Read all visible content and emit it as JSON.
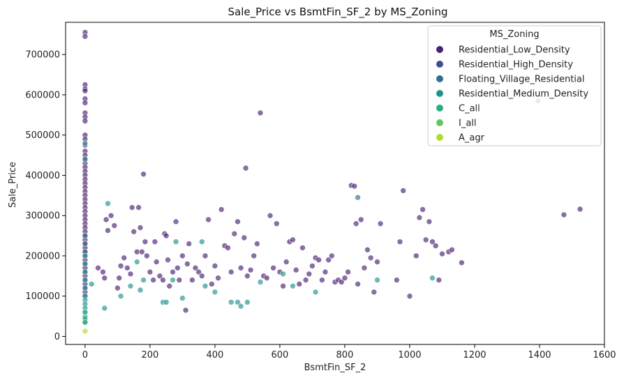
{
  "chart_data": {
    "type": "scatter",
    "title": "Sale_Price vs BsmtFin_SF_2 by MS_Zoning",
    "xlabel": "BsmtFin_SF_2",
    "ylabel": "Sale_Price",
    "xlim": [
      -60,
      1600
    ],
    "ylim": [
      -20000,
      780000
    ],
    "xticks": [
      0,
      200,
      400,
      600,
      800,
      1000,
      1200,
      1400,
      1600
    ],
    "yticks": [
      0,
      100000,
      200000,
      300000,
      400000,
      500000,
      600000,
      700000
    ],
    "grid": false,
    "legend": {
      "title": "MS_Zoning",
      "placement": "top-right"
    },
    "series": [
      {
        "name": "Residential_Low_Density",
        "color": "#482173",
        "points": [
          [
            0,
            755000
          ],
          [
            0,
            745000
          ],
          [
            0,
            625000
          ],
          [
            0,
            615000
          ],
          [
            0,
            610000
          ],
          [
            0,
            590000
          ],
          [
            0,
            580000
          ],
          [
            0,
            555000
          ],
          [
            0,
            545000
          ],
          [
            0,
            535000
          ],
          [
            0,
            500000
          ],
          [
            0,
            490000
          ],
          [
            0,
            475000
          ],
          [
            0,
            460000
          ],
          [
            0,
            450000
          ],
          [
            0,
            440000
          ],
          [
            0,
            430000
          ],
          [
            0,
            420000
          ],
          [
            0,
            410000
          ],
          [
            0,
            400000
          ],
          [
            0,
            390000
          ],
          [
            0,
            380000
          ],
          [
            0,
            370000
          ],
          [
            0,
            360000
          ],
          [
            0,
            350000
          ],
          [
            0,
            340000
          ],
          [
            0,
            330000
          ],
          [
            0,
            320000
          ],
          [
            0,
            310000
          ],
          [
            0,
            300000
          ],
          [
            0,
            290000
          ],
          [
            0,
            280000
          ],
          [
            0,
            270000
          ],
          [
            0,
            260000
          ],
          [
            0,
            250000
          ],
          [
            0,
            240000
          ],
          [
            0,
            230000
          ],
          [
            0,
            220000
          ],
          [
            0,
            210000
          ],
          [
            0,
            200000
          ],
          [
            0,
            190000
          ],
          [
            0,
            180000
          ],
          [
            0,
            170000
          ],
          [
            0,
            160000
          ],
          [
            0,
            150000
          ],
          [
            0,
            140000
          ],
          [
            0,
            130000
          ],
          [
            0,
            120000
          ],
          [
            0,
            110000
          ],
          [
            0,
            100000
          ],
          [
            40,
            170000
          ],
          [
            55,
            160000
          ],
          [
            60,
            145000
          ],
          [
            65,
            290000
          ],
          [
            70,
            263000
          ],
          [
            80,
            300000
          ],
          [
            90,
            275000
          ],
          [
            100,
            120000
          ],
          [
            105,
            145000
          ],
          [
            110,
            175000
          ],
          [
            120,
            195000
          ],
          [
            130,
            170000
          ],
          [
            140,
            155000
          ],
          [
            145,
            320000
          ],
          [
            150,
            260000
          ],
          [
            160,
            210000
          ],
          [
            165,
            320000
          ],
          [
            170,
            270000
          ],
          [
            175,
            210000
          ],
          [
            180,
            403000
          ],
          [
            185,
            235000
          ],
          [
            190,
            200000
          ],
          [
            200,
            160000
          ],
          [
            210,
            140000
          ],
          [
            215,
            235000
          ],
          [
            220,
            185000
          ],
          [
            230,
            150000
          ],
          [
            240,
            140000
          ],
          [
            245,
            255000
          ],
          [
            250,
            250000
          ],
          [
            255,
            190000
          ],
          [
            260,
            125000
          ],
          [
            270,
            160000
          ],
          [
            280,
            285000
          ],
          [
            285,
            170000
          ],
          [
            290,
            140000
          ],
          [
            300,
            200000
          ],
          [
            310,
            65000
          ],
          [
            315,
            180000
          ],
          [
            320,
            230000
          ],
          [
            330,
            140000
          ],
          [
            340,
            170000
          ],
          [
            350,
            160000
          ],
          [
            360,
            150000
          ],
          [
            370,
            200000
          ],
          [
            380,
            290000
          ],
          [
            390,
            130000
          ],
          [
            400,
            175000
          ],
          [
            410,
            145000
          ],
          [
            420,
            315000
          ],
          [
            430,
            225000
          ],
          [
            440,
            220000
          ],
          [
            450,
            160000
          ],
          [
            460,
            255000
          ],
          [
            470,
            285000
          ],
          [
            480,
            170000
          ],
          [
            490,
            245000
          ],
          [
            495,
            418000
          ],
          [
            500,
            150000
          ],
          [
            510,
            165000
          ],
          [
            520,
            200000
          ],
          [
            530,
            230000
          ],
          [
            540,
            555000
          ],
          [
            550,
            150000
          ],
          [
            560,
            145000
          ],
          [
            570,
            300000
          ],
          [
            580,
            170000
          ],
          [
            590,
            280000
          ],
          [
            600,
            160000
          ],
          [
            610,
            125000
          ],
          [
            620,
            185000
          ],
          [
            630,
            235000
          ],
          [
            640,
            240000
          ],
          [
            650,
            165000
          ],
          [
            660,
            130000
          ],
          [
            670,
            220000
          ],
          [
            680,
            140000
          ],
          [
            690,
            155000
          ],
          [
            700,
            175000
          ],
          [
            710,
            195000
          ],
          [
            720,
            190000
          ],
          [
            730,
            140000
          ],
          [
            740,
            160000
          ],
          [
            750,
            190000
          ],
          [
            760,
            200000
          ],
          [
            770,
            135000
          ],
          [
            780,
            140000
          ],
          [
            790,
            135000
          ],
          [
            800,
            145000
          ],
          [
            810,
            160000
          ],
          [
            820,
            375000
          ],
          [
            830,
            373000
          ],
          [
            835,
            280000
          ],
          [
            840,
            130000
          ],
          [
            850,
            290000
          ],
          [
            860,
            170000
          ],
          [
            870,
            215000
          ],
          [
            880,
            195000
          ],
          [
            890,
            110000
          ],
          [
            900,
            185000
          ],
          [
            910,
            280000
          ],
          [
            960,
            140000
          ],
          [
            970,
            235000
          ],
          [
            980,
            362000
          ],
          [
            1000,
            100000
          ],
          [
            1020,
            200000
          ],
          [
            1030,
            295000
          ],
          [
            1040,
            315000
          ],
          [
            1050,
            240000
          ],
          [
            1060,
            285000
          ],
          [
            1070,
            235000
          ],
          [
            1080,
            225000
          ],
          [
            1090,
            140000
          ],
          [
            1100,
            205000
          ],
          [
            1120,
            210000
          ],
          [
            1130,
            215000
          ],
          [
            1160,
            183000
          ],
          [
            1395,
            585000
          ],
          [
            1475,
            302000
          ],
          [
            1525,
            316000
          ]
        ]
      },
      {
        "name": "Residential_High_Density",
        "color": "#3b518b",
        "points": []
      },
      {
        "name": "Floating_Village_Residential",
        "color": "#2c718e",
        "points": [
          [
            0,
            250000
          ],
          [
            0,
            230000
          ],
          [
            0,
            210000
          ],
          [
            840,
            345000
          ]
        ]
      },
      {
        "name": "Residential_Medium_Density",
        "color": "#21918c",
        "points": [
          [
            0,
            480000
          ],
          [
            0,
            440000
          ],
          [
            0,
            200000
          ],
          [
            0,
            180000
          ],
          [
            0,
            160000
          ],
          [
            0,
            140000
          ],
          [
            0,
            120000
          ],
          [
            0,
            100000
          ],
          [
            0,
            90000
          ],
          [
            0,
            80000
          ],
          [
            0,
            70000
          ],
          [
            0,
            60000
          ],
          [
            0,
            50000
          ],
          [
            0,
            40000
          ],
          [
            0,
            35000
          ],
          [
            20,
            130000
          ],
          [
            60,
            70000
          ],
          [
            70,
            330000
          ],
          [
            110,
            100000
          ],
          [
            140,
            125000
          ],
          [
            160,
            185000
          ],
          [
            170,
            115000
          ],
          [
            180,
            140000
          ],
          [
            240,
            85000
          ],
          [
            250,
            85000
          ],
          [
            270,
            140000
          ],
          [
            280,
            235000
          ],
          [
            300,
            95000
          ],
          [
            360,
            235000
          ],
          [
            370,
            125000
          ],
          [
            400,
            110000
          ],
          [
            450,
            85000
          ],
          [
            470,
            85000
          ],
          [
            480,
            75000
          ],
          [
            500,
            85000
          ],
          [
            540,
            135000
          ],
          [
            610,
            155000
          ],
          [
            640,
            125000
          ],
          [
            710,
            110000
          ],
          [
            900,
            140000
          ],
          [
            1070,
            145000
          ]
        ]
      },
      {
        "name": "C_all",
        "color": "#28ae80",
        "points": [
          [
            0,
            60000
          ],
          [
            0,
            45000
          ],
          [
            0,
            35000
          ]
        ]
      },
      {
        "name": "I_all",
        "color": "#5ec962",
        "points": []
      },
      {
        "name": "A_agr",
        "color": "#addc30",
        "points": [
          [
            0,
            13000
          ]
        ]
      }
    ]
  }
}
